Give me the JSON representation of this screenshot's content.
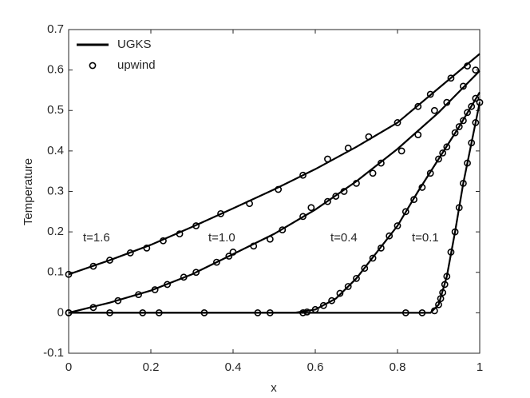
{
  "chart_data": {
    "type": "line",
    "x_label": "x",
    "y_label": "Temperature",
    "xlim": [
      0,
      1
    ],
    "xticks": [
      0,
      0.2,
      0.4,
      0.6,
      0.8,
      1
    ],
    "ylim": [
      -0.1,
      0.7
    ],
    "yticks": [
      -0.1,
      0,
      0.1,
      0.2,
      0.3,
      0.4,
      0.5,
      0.6,
      0.7
    ],
    "legend": "upper left",
    "series": [
      {
        "name": "UGKS",
        "style": "line",
        "color": "#000000",
        "curves": [
          {
            "label": "t=1.6",
            "x": [
              0,
              0.1,
              0.2,
              0.3,
              0.4,
              0.5,
              0.6,
              0.7,
              0.8,
              0.9,
              1
            ],
            "values": [
              0.095,
              0.13,
              0.168,
              0.212,
              0.258,
              0.305,
              0.355,
              0.41,
              0.47,
              0.555,
              0.64
            ]
          },
          {
            "label": "t=1.0",
            "x": [
              0,
              0.1,
              0.2,
              0.3,
              0.4,
              0.5,
              0.6,
              0.7,
              0.8,
              0.9,
              1
            ],
            "values": [
              0,
              0.025,
              0.055,
              0.095,
              0.145,
              0.195,
              0.255,
              0.325,
              0.405,
              0.495,
              0.598
            ]
          },
          {
            "label": "t=0.4",
            "x": [
              0,
              0.55,
              0.6,
              0.65,
              0.7,
              0.75,
              0.8,
              0.85,
              0.9,
              0.95,
              1
            ],
            "values": [
              0,
              0,
              0.008,
              0.035,
              0.085,
              0.15,
              0.215,
              0.3,
              0.38,
              0.46,
              0.545
            ]
          },
          {
            "label": "t=0.1",
            "x": [
              0,
              0.88,
              0.9,
              0.92,
              0.94,
              0.96,
              0.98,
              1
            ],
            "values": [
              0,
              0,
              0.02,
              0.09,
              0.2,
              0.32,
              0.42,
              0.52
            ]
          }
        ]
      },
      {
        "name": "upwind",
        "style": "marker",
        "color": "#000000",
        "curves": [
          {
            "x": [
              0,
              0.06,
              0.1,
              0.15,
              0.19,
              0.23,
              0.27,
              0.31,
              0.37,
              0.44,
              0.51,
              0.57,
              0.63,
              0.68,
              0.73,
              0.8,
              0.85,
              0.88,
              0.93,
              0.97
            ],
            "values": [
              0.095,
              0.115,
              0.13,
              0.148,
              0.16,
              0.178,
              0.195,
              0.215,
              0.245,
              0.27,
              0.305,
              0.34,
              0.38,
              0.407,
              0.435,
              0.47,
              0.51,
              0.54,
              0.58,
              0.61
            ]
          },
          {
            "x": [
              0,
              0.06,
              0.12,
              0.17,
              0.21,
              0.24,
              0.28,
              0.31,
              0.36,
              0.39,
              0.4,
              0.45,
              0.49,
              0.52,
              0.57,
              0.59,
              0.63,
              0.65,
              0.67,
              0.7,
              0.74,
              0.76,
              0.81,
              0.85,
              0.89,
              0.92,
              0.96,
              0.99
            ],
            "values": [
              0,
              0.013,
              0.03,
              0.045,
              0.057,
              0.07,
              0.088,
              0.1,
              0.125,
              0.14,
              0.15,
              0.165,
              0.182,
              0.205,
              0.238,
              0.26,
              0.275,
              0.288,
              0.3,
              0.32,
              0.345,
              0.37,
              0.4,
              0.44,
              0.5,
              0.52,
              0.56,
              0.6
            ]
          },
          {
            "x": [
              0.57,
              0.58,
              0.6,
              0.62,
              0.64,
              0.66,
              0.68,
              0.7,
              0.72,
              0.74,
              0.76,
              0.78,
              0.8,
              0.82,
              0.84,
              0.86,
              0.88,
              0.9,
              0.91,
              0.92,
              0.94,
              0.95,
              0.96,
              0.97,
              0.98,
              0.99
            ],
            "values": [
              0,
              0.002,
              0.008,
              0.018,
              0.03,
              0.048,
              0.065,
              0.085,
              0.11,
              0.135,
              0.16,
              0.19,
              0.215,
              0.25,
              0.28,
              0.31,
              0.345,
              0.38,
              0.395,
              0.41,
              0.445,
              0.46,
              0.475,
              0.495,
              0.51,
              0.53
            ]
          },
          {
            "x": [
              0,
              0.1,
              0.18,
              0.22,
              0.33,
              0.46,
              0.49,
              0.82,
              0.86,
              0.89,
              0.9,
              0.905,
              0.91,
              0.915,
              0.92,
              0.93,
              0.94,
              0.95,
              0.96,
              0.97,
              0.98,
              0.99,
              1
            ],
            "values": [
              0,
              0,
              0,
              0,
              0,
              0,
              0,
              0,
              0,
              0.005,
              0.02,
              0.035,
              0.05,
              0.07,
              0.09,
              0.15,
              0.2,
              0.26,
              0.32,
              0.37,
              0.42,
              0.47,
              0.52
            ]
          }
        ]
      }
    ]
  }
}
